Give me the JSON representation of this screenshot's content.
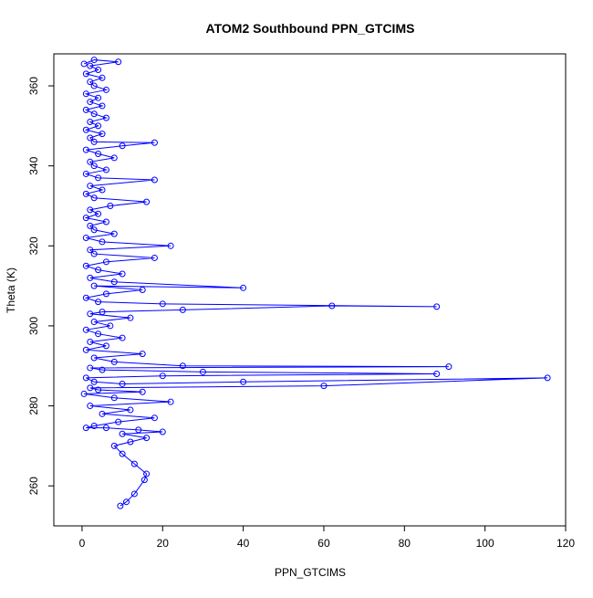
{
  "chart_data": {
    "type": "scatter",
    "title": "ATOM2 Southbound PPN_GTCIMS",
    "xlabel": "PPN_GTCIMS",
    "ylabel": "Theta (K)",
    "xlim": [
      -7,
      120
    ],
    "ylim": [
      250,
      368
    ],
    "x_ticks": [
      0,
      20,
      40,
      60,
      80,
      100,
      120
    ],
    "y_ticks": [
      260,
      280,
      300,
      320,
      340,
      360
    ],
    "grid": false,
    "legend": "none",
    "marker": "open-circle",
    "connected": true,
    "color": "#0000ff",
    "series": [
      {
        "points": [
          [
            9.5,
            255
          ],
          [
            11,
            256
          ],
          [
            13,
            258
          ],
          [
            15.5,
            261.5
          ],
          [
            16,
            263
          ],
          [
            13,
            265.5
          ],
          [
            10,
            268
          ],
          [
            8,
            270
          ],
          [
            12,
            271
          ],
          [
            16,
            272
          ],
          [
            10,
            273
          ],
          [
            20,
            273.5
          ],
          [
            14,
            274
          ],
          [
            6,
            274.5
          ],
          [
            1,
            274.5
          ],
          [
            3,
            275
          ],
          [
            9,
            276
          ],
          [
            18,
            277
          ],
          [
            5,
            278
          ],
          [
            12,
            279
          ],
          [
            2,
            280
          ],
          [
            22,
            281
          ],
          [
            8,
            282
          ],
          [
            0.5,
            283
          ],
          [
            15,
            283.5
          ],
          [
            4,
            284
          ],
          [
            2,
            284.5
          ],
          [
            60,
            285
          ],
          [
            115.5,
            287
          ],
          [
            40,
            286
          ],
          [
            10,
            285.5
          ],
          [
            3,
            286
          ],
          [
            1,
            287
          ],
          [
            20,
            287.5
          ],
          [
            88,
            288
          ],
          [
            30,
            288.5
          ],
          [
            5,
            289
          ],
          [
            2,
            289.5
          ],
          [
            91,
            289.8
          ],
          [
            25,
            290
          ],
          [
            8,
            291
          ],
          [
            3,
            292
          ],
          [
            15,
            293
          ],
          [
            1,
            294
          ],
          [
            6,
            295
          ],
          [
            2,
            296
          ],
          [
            10,
            297
          ],
          [
            4,
            298
          ],
          [
            1,
            299
          ],
          [
            7,
            300
          ],
          [
            3,
            301
          ],
          [
            12,
            302
          ],
          [
            2,
            303
          ],
          [
            5,
            303.5
          ],
          [
            25,
            304
          ],
          [
            62,
            305
          ],
          [
            88,
            304.8
          ],
          [
            20,
            305.5
          ],
          [
            4,
            306
          ],
          [
            1,
            307
          ],
          [
            6,
            308
          ],
          [
            15,
            309
          ],
          [
            3,
            310
          ],
          [
            40,
            309.5
          ],
          [
            8,
            311
          ],
          [
            2,
            312
          ],
          [
            10,
            313
          ],
          [
            4,
            314
          ],
          [
            1,
            315
          ],
          [
            6,
            316
          ],
          [
            18,
            317
          ],
          [
            3,
            318
          ],
          [
            2,
            319
          ],
          [
            22,
            320
          ],
          [
            5,
            321
          ],
          [
            1,
            322
          ],
          [
            8,
            323
          ],
          [
            3,
            324
          ],
          [
            2,
            325
          ],
          [
            6,
            326
          ],
          [
            1,
            327
          ],
          [
            4,
            328
          ],
          [
            2,
            329
          ],
          [
            7,
            330
          ],
          [
            16,
            331
          ],
          [
            3,
            332
          ],
          [
            1,
            333
          ],
          [
            5,
            334
          ],
          [
            2,
            335
          ],
          [
            18,
            336.5
          ],
          [
            4,
            337
          ],
          [
            1,
            338
          ],
          [
            6,
            339
          ],
          [
            3,
            340
          ],
          [
            2,
            341
          ],
          [
            8,
            342
          ],
          [
            4,
            343
          ],
          [
            1,
            344
          ],
          [
            10,
            345
          ],
          [
            18,
            345.8
          ],
          [
            3,
            346
          ],
          [
            2,
            347
          ],
          [
            5,
            348
          ],
          [
            1,
            349
          ],
          [
            4,
            350
          ],
          [
            2,
            351
          ],
          [
            6,
            352
          ],
          [
            3,
            353
          ],
          [
            1,
            354
          ],
          [
            5,
            355
          ],
          [
            2,
            356
          ],
          [
            4,
            357
          ],
          [
            1,
            358
          ],
          [
            6,
            359
          ],
          [
            3,
            360
          ],
          [
            2,
            361
          ],
          [
            5,
            362
          ],
          [
            1,
            363
          ],
          [
            4,
            364
          ],
          [
            2,
            365
          ],
          [
            9,
            366
          ],
          [
            3,
            366.5
          ],
          [
            0.5,
            365.5
          ]
        ]
      }
    ]
  }
}
